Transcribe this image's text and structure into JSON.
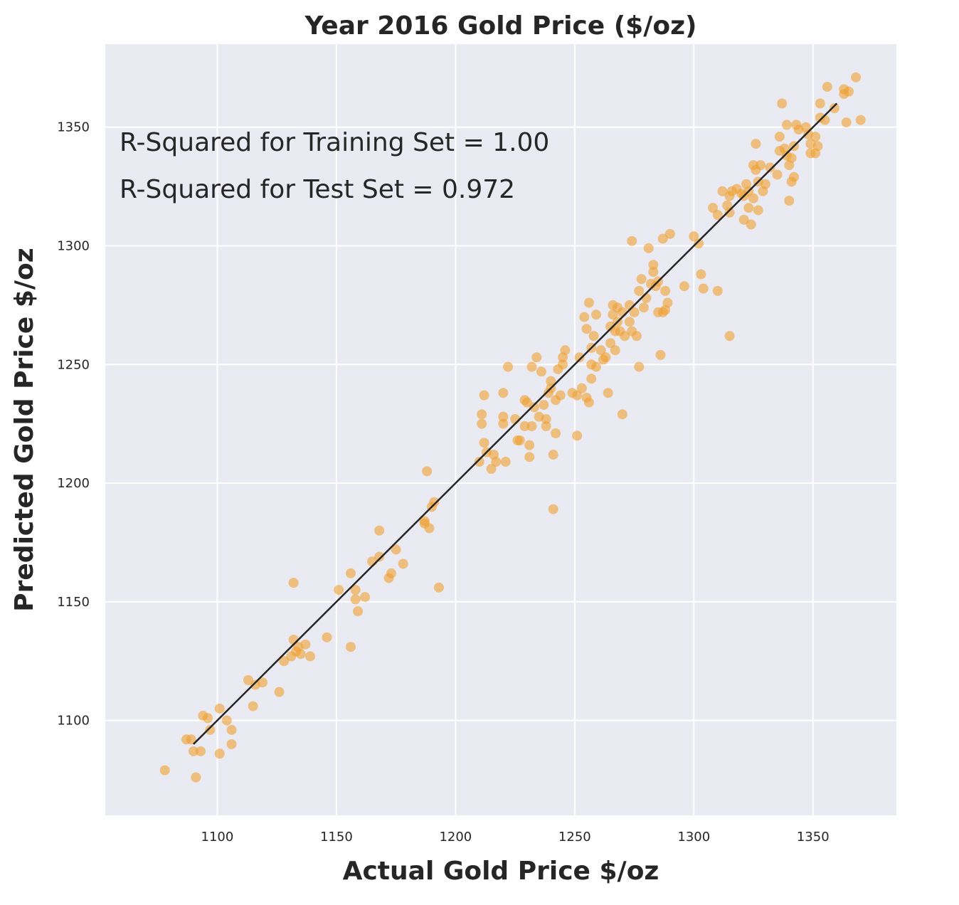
{
  "chart_data": {
    "type": "scatter",
    "title": "Year 2016 Gold Price ($/oz)",
    "xlabel": "Actual Gold Price $/oz",
    "ylabel": "Predicted Gold Price $/oz",
    "xlim": [
      1053,
      1385
    ],
    "ylim": [
      1060,
      1385
    ],
    "xticks": [
      "1100",
      "1150",
      "1200",
      "1250",
      "1300",
      "1350"
    ],
    "yticks": [
      "1100",
      "1150",
      "1200",
      "1250",
      "1300",
      "1350"
    ],
    "xtick_values": [
      1100,
      1150,
      1200,
      1250,
      1300,
      1350
    ],
    "ytick_values": [
      1100,
      1150,
      1200,
      1250,
      1300,
      1350
    ],
    "grid": true,
    "annotations": [
      "R-Squared for Training Set = 1.00",
      "R-Squared for Test Set = 0.972"
    ],
    "fit_line": {
      "x": [
        1090,
        1360
      ],
      "y": [
        1090,
        1360
      ]
    },
    "point_color": "#f0a030",
    "line_color": "#262626",
    "background_color": "#eaeaf2",
    "points": [
      [
        1078,
        1079
      ],
      [
        1087,
        1092
      ],
      [
        1089,
        1092
      ],
      [
        1090,
        1087
      ],
      [
        1091,
        1076
      ],
      [
        1093,
        1087
      ],
      [
        1094,
        1102
      ],
      [
        1096,
        1101
      ],
      [
        1097,
        1096
      ],
      [
        1101,
        1105
      ],
      [
        1101,
        1086
      ],
      [
        1104,
        1100
      ],
      [
        1106,
        1090
      ],
      [
        1106,
        1096
      ],
      [
        1113,
        1117
      ],
      [
        1115,
        1106
      ],
      [
        1116,
        1115
      ],
      [
        1119,
        1116
      ],
      [
        1126,
        1112
      ],
      [
        1128,
        1125
      ],
      [
        1131,
        1127
      ],
      [
        1132,
        1134
      ],
      [
        1132,
        1158
      ],
      [
        1133,
        1129
      ],
      [
        1134,
        1131
      ],
      [
        1135,
        1128
      ],
      [
        1137,
        1132
      ],
      [
        1139,
        1127
      ],
      [
        1146,
        1135
      ],
      [
        1151,
        1155
      ],
      [
        1156,
        1162
      ],
      [
        1156,
        1131
      ],
      [
        1158,
        1155
      ],
      [
        1158,
        1151
      ],
      [
        1159,
        1146
      ],
      [
        1162,
        1152
      ],
      [
        1165,
        1167
      ],
      [
        1168,
        1169
      ],
      [
        1168,
        1180
      ],
      [
        1172,
        1160
      ],
      [
        1173,
        1162
      ],
      [
        1175,
        1172
      ],
      [
        1178,
        1166
      ],
      [
        1187,
        1184
      ],
      [
        1187,
        1183
      ],
      [
        1188,
        1205
      ],
      [
        1189,
        1181
      ],
      [
        1190,
        1190
      ],
      [
        1191,
        1192
      ],
      [
        1193,
        1156
      ],
      [
        1210,
        1209
      ],
      [
        1211,
        1229
      ],
      [
        1211,
        1225
      ],
      [
        1212,
        1237
      ],
      [
        1212,
        1217
      ],
      [
        1213,
        1213
      ],
      [
        1215,
        1206
      ],
      [
        1216,
        1212
      ],
      [
        1217,
        1209
      ],
      [
        1220,
        1238
      ],
      [
        1220,
        1228
      ],
      [
        1220,
        1225
      ],
      [
        1221,
        1209
      ],
      [
        1222,
        1249
      ],
      [
        1225,
        1227
      ],
      [
        1226,
        1218
      ],
      [
        1227,
        1218
      ],
      [
        1229,
        1224
      ],
      [
        1229,
        1235
      ],
      [
        1230,
        1234
      ],
      [
        1231,
        1216
      ],
      [
        1231,
        1211
      ],
      [
        1232,
        1249
      ],
      [
        1232,
        1224
      ],
      [
        1233,
        1232
      ],
      [
        1234,
        1253
      ],
      [
        1235,
        1228
      ],
      [
        1236,
        1247
      ],
      [
        1237,
        1233
      ],
      [
        1238,
        1227
      ],
      [
        1238,
        1224
      ],
      [
        1239,
        1238
      ],
      [
        1240,
        1240
      ],
      [
        1240,
        1243
      ],
      [
        1241,
        1212
      ],
      [
        1241,
        1189
      ],
      [
        1242,
        1235
      ],
      [
        1242,
        1221
      ],
      [
        1243,
        1248
      ],
      [
        1244,
        1237
      ],
      [
        1245,
        1253
      ],
      [
        1245,
        1250
      ],
      [
        1246,
        1256
      ],
      [
        1249,
        1238
      ],
      [
        1251,
        1237
      ],
      [
        1251,
        1220
      ],
      [
        1252,
        1253
      ],
      [
        1253,
        1240
      ],
      [
        1254,
        1270
      ],
      [
        1255,
        1265
      ],
      [
        1255,
        1236
      ],
      [
        1256,
        1234
      ],
      [
        1256,
        1276
      ],
      [
        1257,
        1257
      ],
      [
        1257,
        1250
      ],
      [
        1257,
        1244
      ],
      [
        1258,
        1262
      ],
      [
        1259,
        1249
      ],
      [
        1259,
        1271
      ],
      [
        1261,
        1256
      ],
      [
        1262,
        1252
      ],
      [
        1263,
        1253
      ],
      [
        1264,
        1238
      ],
      [
        1265,
        1259
      ],
      [
        1265,
        1266
      ],
      [
        1266,
        1275
      ],
      [
        1266,
        1271
      ],
      [
        1267,
        1264
      ],
      [
        1267,
        1256
      ],
      [
        1268,
        1268
      ],
      [
        1268,
        1274
      ],
      [
        1269,
        1264
      ],
      [
        1270,
        1272
      ],
      [
        1270,
        1229
      ],
      [
        1271,
        1262
      ],
      [
        1273,
        1268
      ],
      [
        1273,
        1275
      ],
      [
        1274,
        1302
      ],
      [
        1274,
        1264
      ],
      [
        1275,
        1272
      ],
      [
        1276,
        1262
      ],
      [
        1277,
        1281
      ],
      [
        1277,
        1249
      ],
      [
        1278,
        1286
      ],
      [
        1279,
        1274
      ],
      [
        1280,
        1278
      ],
      [
        1281,
        1299
      ],
      [
        1282,
        1284
      ],
      [
        1283,
        1292
      ],
      [
        1283,
        1289
      ],
      [
        1284,
        1283
      ],
      [
        1285,
        1285
      ],
      [
        1285,
        1272
      ],
      [
        1286,
        1254
      ],
      [
        1287,
        1303
      ],
      [
        1287,
        1272
      ],
      [
        1288,
        1281
      ],
      [
        1288,
        1273
      ],
      [
        1289,
        1276
      ],
      [
        1290,
        1305
      ],
      [
        1296,
        1283
      ],
      [
        1300,
        1304
      ],
      [
        1302,
        1301
      ],
      [
        1303,
        1288
      ],
      [
        1304,
        1282
      ],
      [
        1310,
        1281
      ],
      [
        1315,
        1262
      ],
      [
        1308,
        1316
      ],
      [
        1310,
        1313
      ],
      [
        1312,
        1323
      ],
      [
        1314,
        1317
      ],
      [
        1315,
        1321
      ],
      [
        1315,
        1314
      ],
      [
        1316,
        1323
      ],
      [
        1318,
        1324
      ],
      [
        1320,
        1322
      ],
      [
        1321,
        1311
      ],
      [
        1321,
        1321
      ],
      [
        1322,
        1326
      ],
      [
        1323,
        1316
      ],
      [
        1323,
        1323
      ],
      [
        1324,
        1309
      ],
      [
        1325,
        1334
      ],
      [
        1325,
        1320
      ],
      [
        1326,
        1332
      ],
      [
        1326,
        1343
      ],
      [
        1327,
        1315
      ],
      [
        1327,
        1327
      ],
      [
        1328,
        1334
      ],
      [
        1329,
        1323
      ],
      [
        1330,
        1326
      ],
      [
        1332,
        1333
      ],
      [
        1335,
        1330
      ],
      [
        1336,
        1346
      ],
      [
        1336,
        1340
      ],
      [
        1337,
        1360
      ],
      [
        1338,
        1341
      ],
      [
        1339,
        1338
      ],
      [
        1339,
        1351
      ],
      [
        1340,
        1319
      ],
      [
        1340,
        1334
      ],
      [
        1341,
        1337
      ],
      [
        1341,
        1327
      ],
      [
        1342,
        1342
      ],
      [
        1342,
        1329
      ],
      [
        1343,
        1351
      ],
      [
        1344,
        1349
      ],
      [
        1347,
        1350
      ],
      [
        1348,
        1347
      ],
      [
        1349,
        1343
      ],
      [
        1349,
        1339
      ],
      [
        1351,
        1346
      ],
      [
        1351,
        1339
      ],
      [
        1352,
        1342
      ],
      [
        1353,
        1360
      ],
      [
        1353,
        1354
      ],
      [
        1355,
        1353
      ],
      [
        1356,
        1367
      ],
      [
        1359,
        1358
      ],
      [
        1363,
        1366
      ],
      [
        1363,
        1364
      ],
      [
        1364,
        1352
      ],
      [
        1365,
        1365
      ],
      [
        1368,
        1371
      ],
      [
        1370,
        1353
      ]
    ]
  }
}
